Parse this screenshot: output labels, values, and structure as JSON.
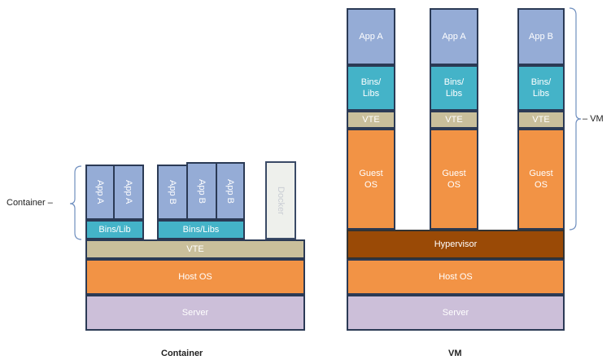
{
  "container_side": {
    "caption": "Container",
    "bracket_label": "Container",
    "apps": [
      "App A",
      "App A",
      "App B",
      "App B",
      "App B"
    ],
    "bins_left": "Bins/Lib",
    "bins_right": "Bins/Libs",
    "docker": "Docker",
    "vte": "VTE",
    "host_os": "Host OS",
    "server": "Server"
  },
  "vm_side": {
    "caption": "VM",
    "bracket_label": "VM",
    "columns": [
      {
        "app": "App A",
        "bins": "Bins/\nLibs",
        "vte": "VTE",
        "guest": "Guest\nOS"
      },
      {
        "app": "App A",
        "bins": "Bins/\nLibs",
        "vte": "VTE",
        "guest": "Guest\nOS"
      },
      {
        "app": "App B",
        "bins": "Bins/\nLibs",
        "vte": "VTE",
        "guest": "Guest\nOS"
      }
    ],
    "hypervisor": "Hypervisor",
    "host_os": "Host OS",
    "server": "Server"
  }
}
